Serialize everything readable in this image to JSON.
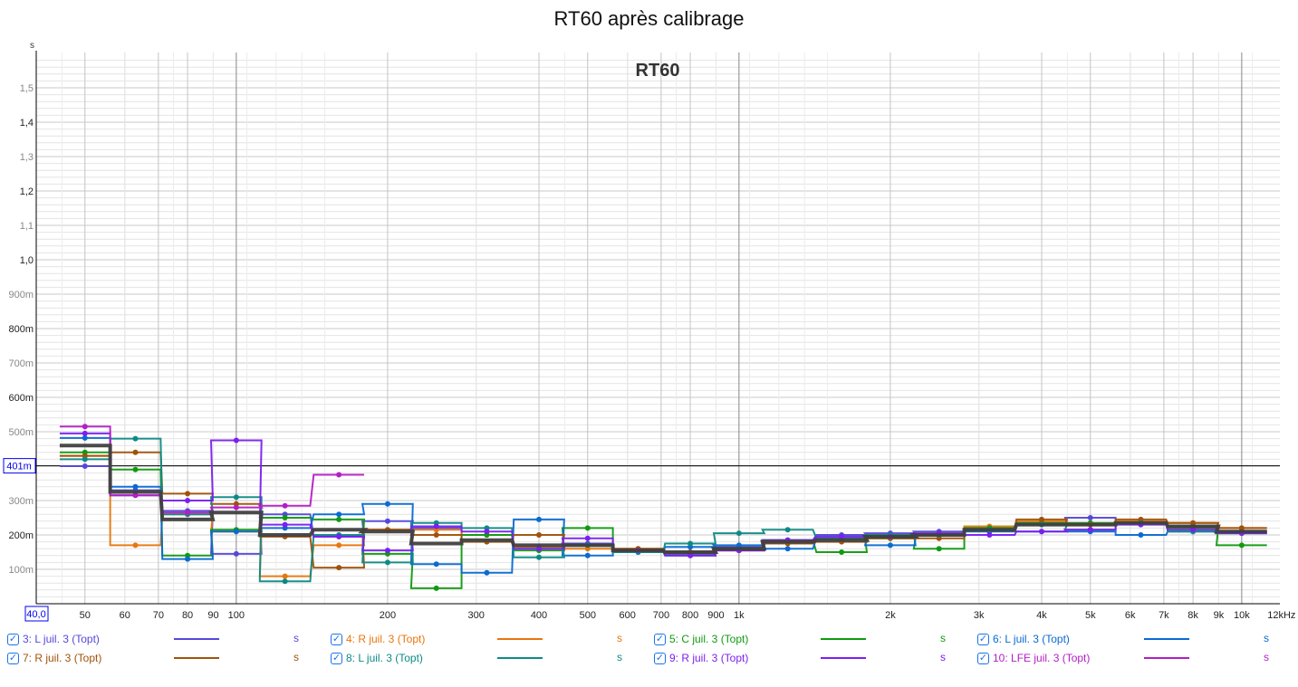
{
  "title": "RT60 après calibrage",
  "chart_data": {
    "type": "line",
    "title": "RT60 après calibrage",
    "inner_label": "RT60",
    "ylabel": "s",
    "xlabel": "Hz",
    "xscale": "log",
    "xlim": [
      40,
      12000
    ],
    "ylim": [
      0,
      1.6
    ],
    "grid": true,
    "cursor": {
      "x_label": "40,0",
      "y_label": "401m",
      "y_value": 0.401
    },
    "x_ticks": [
      {
        "v": 50,
        "l": "50"
      },
      {
        "v": 60,
        "l": "60"
      },
      {
        "v": 70,
        "l": "70"
      },
      {
        "v": 80,
        "l": "80"
      },
      {
        "v": 90,
        "l": "90"
      },
      {
        "v": 100,
        "l": "100"
      },
      {
        "v": 200,
        "l": "200"
      },
      {
        "v": 300,
        "l": "300"
      },
      {
        "v": 400,
        "l": "400"
      },
      {
        "v": 500,
        "l": "500"
      },
      {
        "v": 600,
        "l": "600"
      },
      {
        "v": 700,
        "l": "700"
      },
      {
        "v": 800,
        "l": "800"
      },
      {
        "v": 900,
        "l": "900"
      },
      {
        "v": 1000,
        "l": "1k"
      },
      {
        "v": 2000,
        "l": "2k"
      },
      {
        "v": 3000,
        "l": "3k"
      },
      {
        "v": 4000,
        "l": "4k"
      },
      {
        "v": 5000,
        "l": "5k"
      },
      {
        "v": 6000,
        "l": "6k"
      },
      {
        "v": 7000,
        "l": "7k"
      },
      {
        "v": 8000,
        "l": "8k"
      },
      {
        "v": 9000,
        "l": "9k"
      },
      {
        "v": 10000,
        "l": "10k"
      },
      {
        "v": 12000,
        "l": "12kHz"
      }
    ],
    "y_ticks": [
      {
        "v": 0.1,
        "l": "100m"
      },
      {
        "v": 0.2,
        "l": "200m"
      },
      {
        "v": 0.3,
        "l": "300m"
      },
      {
        "v": 0.5,
        "l": "500m"
      },
      {
        "v": 0.6,
        "l": "600m"
      },
      {
        "v": 0.7,
        "l": "700m"
      },
      {
        "v": 0.8,
        "l": "800m"
      },
      {
        "v": 0.9,
        "l": "900m"
      },
      {
        "v": 1.0,
        "l": "1,0"
      },
      {
        "v": 1.1,
        "l": "1,1"
      },
      {
        "v": 1.2,
        "l": "1,2"
      },
      {
        "v": 1.3,
        "l": "1,3"
      },
      {
        "v": 1.4,
        "l": "1,4"
      },
      {
        "v": 1.5,
        "l": "1,5"
      }
    ],
    "bands": [
      50,
      63,
      80,
      100,
      125,
      160,
      200,
      250,
      315,
      400,
      500,
      630,
      800,
      1000,
      1250,
      1600,
      2000,
      2500,
      3150,
      4000,
      5000,
      6300,
      8000,
      10000
    ],
    "series": [
      {
        "name": "3: L juil. 3 (Topt)",
        "unit": "s",
        "color": "#5548d9",
        "values": [
          0.4,
          0.33,
          0.27,
          0.145,
          0.26,
          0.195,
          0.24,
          0.22,
          0.2,
          0.165,
          0.175,
          0.155,
          0.145,
          0.165,
          0.185,
          0.2,
          0.205,
          0.21,
          0.215,
          0.235,
          0.25,
          0.235,
          0.225,
          0.21
        ]
      },
      {
        "name": "4: R juil. 3 (Topt)",
        "unit": "s",
        "color": "#e8760e",
        "values": [
          0.43,
          0.17,
          0.26,
          0.21,
          0.08,
          0.17,
          0.215,
          0.215,
          0.2,
          0.165,
          0.16,
          0.16,
          0.15,
          0.155,
          0.18,
          0.19,
          0.195,
          0.2,
          0.225,
          0.24,
          0.23,
          0.24,
          0.235,
          0.22
        ]
      },
      {
        "name": "5: C juil. 3 (Topt)",
        "unit": "s",
        "color": "#0f9a10",
        "values": [
          0.44,
          0.39,
          0.14,
          0.215,
          0.25,
          0.245,
          0.145,
          0.045,
          0.2,
          0.155,
          0.22,
          0.15,
          0.14,
          0.16,
          0.185,
          0.15,
          0.19,
          0.16,
          0.22,
          0.235,
          0.235,
          0.235,
          0.22,
          0.17
        ]
      },
      {
        "name": "6: L juil. 3 (Topt)",
        "unit": "s",
        "color": "#0a6ad2",
        "values": [
          0.482,
          0.34,
          0.13,
          0.21,
          0.22,
          0.26,
          0.29,
          0.115,
          0.09,
          0.245,
          0.14,
          0.15,
          0.165,
          0.17,
          0.16,
          0.19,
          0.17,
          0.2,
          0.21,
          0.21,
          0.21,
          0.2,
          0.21,
          0.21
        ]
      },
      {
        "name": "7: R juil. 3 (Topt)",
        "unit": "s",
        "color": "#a0520a",
        "values": [
          0.43,
          0.44,
          0.32,
          0.29,
          0.195,
          0.105,
          0.215,
          0.2,
          0.18,
          0.2,
          0.17,
          0.16,
          0.15,
          0.155,
          0.175,
          0.18,
          0.19,
          0.19,
          0.215,
          0.245,
          0.23,
          0.245,
          0.235,
          0.22
        ]
      },
      {
        "name": "8: L juil. 3 (Topt)",
        "unit": "s",
        "color": "#0e8a85",
        "values": [
          0.42,
          0.48,
          0.26,
          0.31,
          0.065,
          0.2,
          0.12,
          0.235,
          0.22,
          0.135,
          0.17,
          0.15,
          0.175,
          0.205,
          0.215,
          0.19,
          0.2,
          0.2,
          0.215,
          0.23,
          0.215,
          0.235,
          0.21,
          0.205
        ]
      },
      {
        "name": "9: R juil. 3 (Topt)",
        "unit": "s",
        "color": "#7b1ff0",
        "values": [
          0.495,
          0.315,
          0.3,
          0.475,
          0.23,
          0.195,
          0.155,
          0.225,
          0.21,
          0.16,
          0.19,
          0.155,
          0.14,
          0.155,
          0.185,
          0.195,
          0.195,
          0.205,
          0.2,
          0.21,
          0.215,
          0.23,
          0.215,
          0.205
        ]
      },
      {
        "name": "10: LFE juil. 3 (Topt)",
        "unit": "s",
        "color": "#b21fc4",
        "values": [
          0.515,
          0.315,
          0.265,
          0.28,
          0.285,
          0.375
        ]
      },
      {
        "color": "#404040",
        "width": 4,
        "values": [
          0.46,
          0.325,
          0.245,
          0.265,
          0.2,
          0.215,
          0.21,
          0.175,
          0.185,
          0.17,
          0.17,
          0.155,
          0.15,
          0.16,
          0.18,
          0.185,
          0.195,
          0.2,
          0.215,
          0.23,
          0.23,
          0.235,
          0.225,
          0.21
        ]
      }
    ]
  },
  "legend_check": "✓"
}
